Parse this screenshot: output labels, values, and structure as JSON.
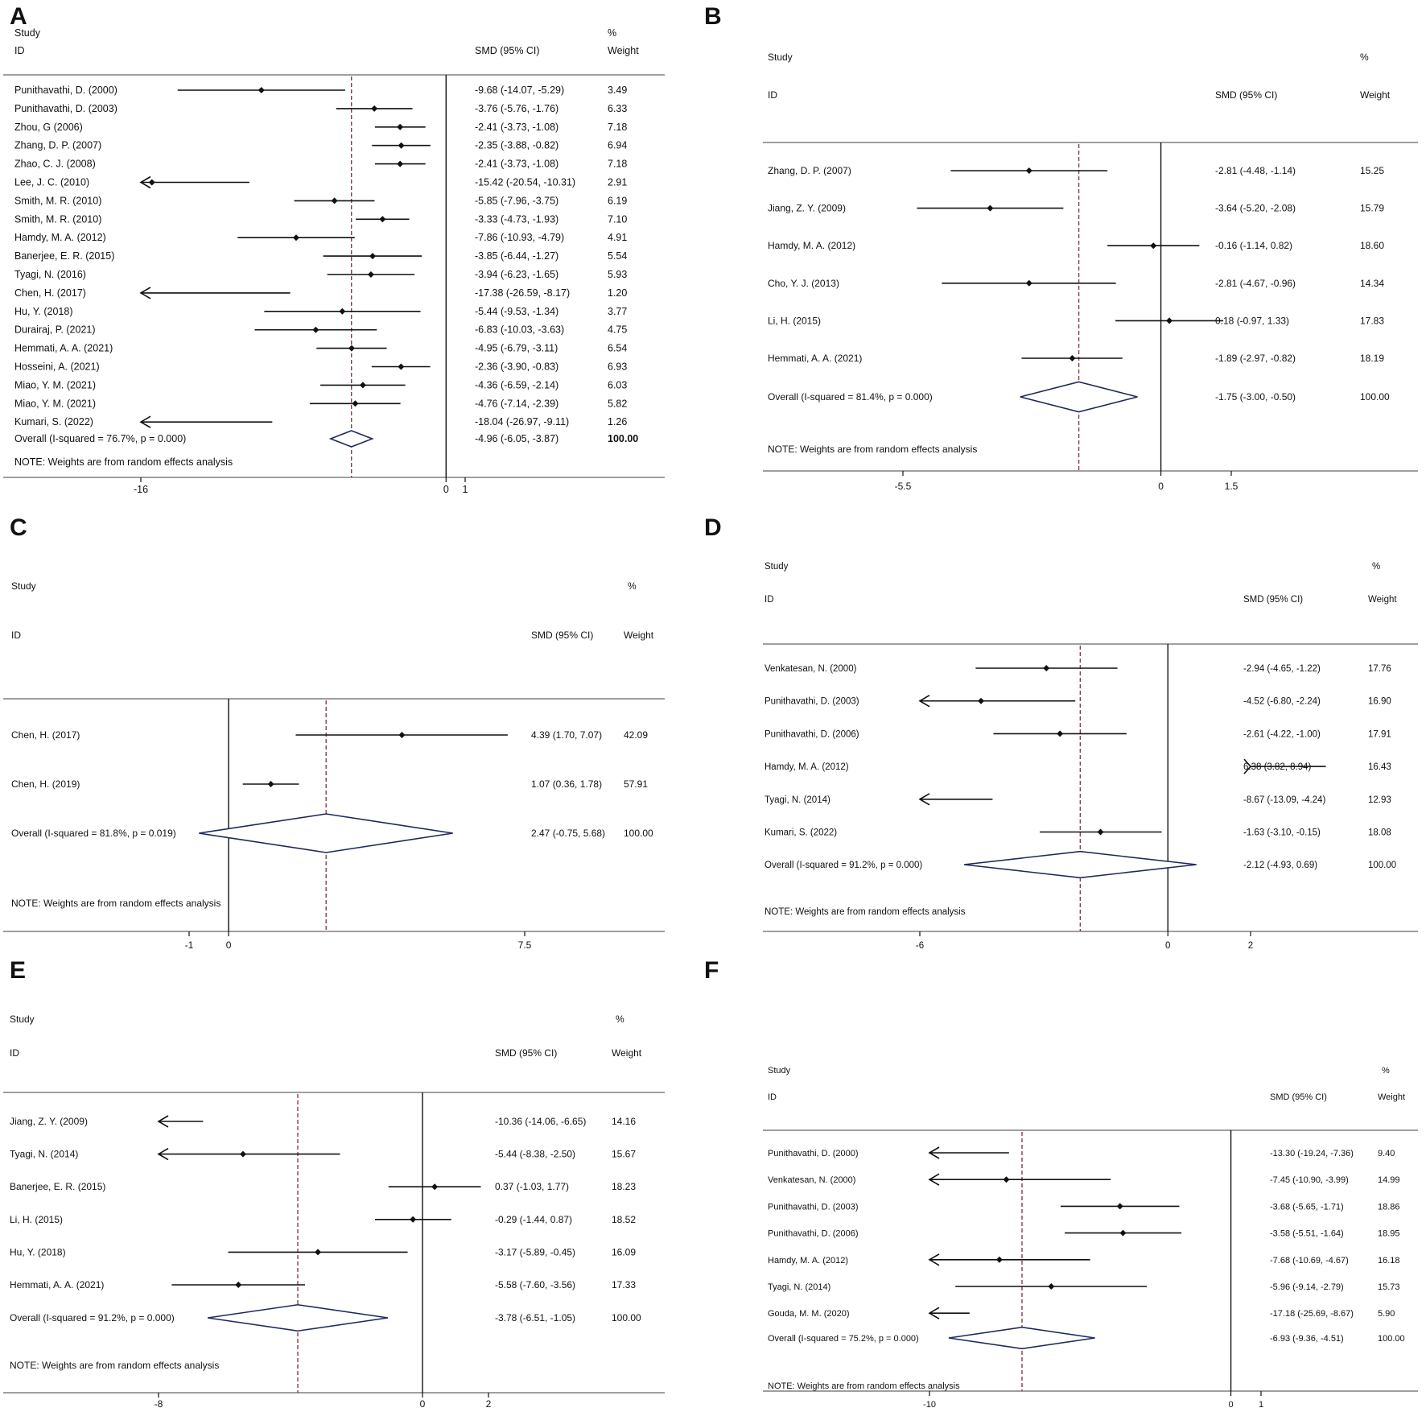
{
  "chart_data": [
    {
      "type": "forest",
      "panel_label": "A",
      "header": {
        "study": "Study",
        "id": "ID",
        "effect": "SMD (95% CI)",
        "pct": "%",
        "weight": "Weight"
      },
      "studies": [
        {
          "label": "Punithavathi, D. (2000)",
          "est": -9.68,
          "lo": -14.07,
          "hi": -5.29,
          "ci_text": "-9.68 (-14.07, -5.29)",
          "weight": "3.49"
        },
        {
          "label": "Punithavathi, D. (2003)",
          "est": -3.76,
          "lo": -5.76,
          "hi": -1.76,
          "ci_text": "-3.76 (-5.76, -1.76)",
          "weight": "6.33"
        },
        {
          "label": "Zhou, G (2006)",
          "est": -2.41,
          "lo": -3.73,
          "hi": -1.08,
          "ci_text": "-2.41 (-3.73, -1.08)",
          "weight": "7.18"
        },
        {
          "label": "Zhang, D. P. (2007)",
          "est": -2.35,
          "lo": -3.88,
          "hi": -0.82,
          "ci_text": "-2.35 (-3.88, -0.82)",
          "weight": "6.94"
        },
        {
          "label": "Zhao, C. J. (2008)",
          "est": -2.41,
          "lo": -3.73,
          "hi": -1.08,
          "ci_text": "-2.41 (-3.73, -1.08)",
          "weight": "7.18"
        },
        {
          "label": "Lee, J. C. (2010)",
          "est": -15.42,
          "lo": -20.54,
          "hi": -10.31,
          "ci_text": "-15.42 (-20.54, -10.31)",
          "weight": "2.91"
        },
        {
          "label": "Smith, M. R. (2010)",
          "est": -5.85,
          "lo": -7.96,
          "hi": -3.75,
          "ci_text": "-5.85 (-7.96, -3.75)",
          "weight": "6.19"
        },
        {
          "label": "Smith, M. R. (2010)",
          "est": -3.33,
          "lo": -4.73,
          "hi": -1.93,
          "ci_text": "-3.33 (-4.73, -1.93)",
          "weight": "7.10"
        },
        {
          "label": "Hamdy, M. A. (2012)",
          "est": -7.86,
          "lo": -10.93,
          "hi": -4.79,
          "ci_text": "-7.86 (-10.93, -4.79)",
          "weight": "4.91"
        },
        {
          "label": "Banerjee, E. R. (2015)",
          "est": -3.85,
          "lo": -6.44,
          "hi": -1.27,
          "ci_text": "-3.85 (-6.44, -1.27)",
          "weight": "5.54"
        },
        {
          "label": "Tyagi, N. (2016)",
          "est": -3.94,
          "lo": -6.23,
          "hi": -1.65,
          "ci_text": "-3.94 (-6.23, -1.65)",
          "weight": "5.93"
        },
        {
          "label": "Chen, H. (2017)",
          "est": -17.38,
          "lo": -26.59,
          "hi": -8.17,
          "ci_text": "-17.38 (-26.59, -8.17)",
          "weight": "1.20"
        },
        {
          "label": "Hu, Y. (2018)",
          "est": -5.44,
          "lo": -9.53,
          "hi": -1.34,
          "ci_text": "-5.44 (-9.53, -1.34)",
          "weight": "3.77"
        },
        {
          "label": "Durairaj, P. (2021)",
          "est": -6.83,
          "lo": -10.03,
          "hi": -3.63,
          "ci_text": "-6.83 (-10.03, -3.63)",
          "weight": "4.75"
        },
        {
          "label": "Hemmati, A. A. (2021)",
          "est": -4.95,
          "lo": -6.79,
          "hi": -3.11,
          "ci_text": "-4.95 (-6.79, -3.11)",
          "weight": "6.54"
        },
        {
          "label": "Hosseini, A. (2021)",
          "est": -2.36,
          "lo": -3.9,
          "hi": -0.83,
          "ci_text": "-2.36 (-3.90, -0.83)",
          "weight": "6.93"
        },
        {
          "label": "Miao, Y. M. (2021)",
          "est": -4.36,
          "lo": -6.59,
          "hi": -2.14,
          "ci_text": "-4.36 (-6.59, -2.14)",
          "weight": "6.03"
        },
        {
          "label": "Miao, Y. M. (2021)",
          "est": -4.76,
          "lo": -7.14,
          "hi": -2.39,
          "ci_text": "-4.76 (-7.14, -2.39)",
          "weight": "5.82"
        },
        {
          "label": "Kumari, S. (2022)",
          "est": -18.04,
          "lo": -26.97,
          "hi": -9.11,
          "ci_text": "-18.04 (-26.97, -9.11)",
          "weight": "1.26"
        }
      ],
      "overall": {
        "label": "Overall  (I-squared = 76.7%, p = 0.000)",
        "est": -4.96,
        "lo": -6.05,
        "hi": -3.87,
        "ci_text": "-4.96 (-6.05, -3.87)",
        "weight": "100.00"
      },
      "note": "NOTE: Weights are from random effects analysis",
      "xlim": [
        -16,
        1
      ],
      "ticks": [
        -16,
        0,
        1
      ],
      "tick_labels": [
        "-16",
        "0",
        "1"
      ]
    },
    {
      "type": "forest",
      "panel_label": "B",
      "header": {
        "study": "Study",
        "id": "ID",
        "effect": "SMD (95% CI)",
        "pct": "%",
        "weight": "Weight"
      },
      "studies": [
        {
          "label": "Zhang, D. P. (2007)",
          "est": -2.81,
          "lo": -4.48,
          "hi": -1.14,
          "ci_text": "-2.81 (-4.48, -1.14)",
          "weight": "15.25"
        },
        {
          "label": "Jiang, Z. Y. (2009)",
          "est": -3.64,
          "lo": -5.2,
          "hi": -2.08,
          "ci_text": "-3.64 (-5.20, -2.08)",
          "weight": "15.79"
        },
        {
          "label": "Hamdy, M. A. (2012)",
          "est": -0.16,
          "lo": -1.14,
          "hi": 0.82,
          "ci_text": "-0.16 (-1.14, 0.82)",
          "weight": "18.60"
        },
        {
          "label": "Cho, Y. J. (2013)",
          "est": -2.81,
          "lo": -4.67,
          "hi": -0.96,
          "ci_text": "-2.81 (-4.67, -0.96)",
          "weight": "14.34"
        },
        {
          "label": "Li, H. (2015)",
          "est": 0.18,
          "lo": -0.97,
          "hi": 1.33,
          "ci_text": "0.18 (-0.97, 1.33)",
          "weight": "17.83"
        },
        {
          "label": "Hemmati, A. A. (2021)",
          "est": -1.89,
          "lo": -2.97,
          "hi": -0.82,
          "ci_text": "-1.89 (-2.97, -0.82)",
          "weight": "18.19"
        }
      ],
      "overall": {
        "label": "Overall  (I-squared = 81.4%, p = 0.000)",
        "est": -1.75,
        "lo": -3.0,
        "hi": -0.5,
        "ci_text": "-1.75 (-3.00, -0.50)",
        "weight": "100.00"
      },
      "note": "NOTE: Weights are from random effects analysis",
      "xlim": [
        -5.5,
        1.5
      ],
      "ticks": [
        -5.5,
        0,
        1.5
      ],
      "tick_labels": [
        "-5.5",
        "0",
        "1.5"
      ]
    },
    {
      "type": "forest",
      "panel_label": "C",
      "header": {
        "study": "Study",
        "id": "ID",
        "effect": "SMD (95% CI)",
        "pct": "%",
        "weight": "Weight"
      },
      "studies": [
        {
          "label": "Chen, H. (2017)",
          "est": 4.39,
          "lo": 1.7,
          "hi": 7.07,
          "ci_text": "4.39 (1.70, 7.07)",
          "weight": "42.09"
        },
        {
          "label": "Chen, H. (2019)",
          "est": 1.07,
          "lo": 0.36,
          "hi": 1.78,
          "ci_text": "1.07 (0.36, 1.78)",
          "weight": "57.91"
        }
      ],
      "overall": {
        "label": "Overall  (I-squared = 81.8%, p = 0.019)",
        "est": 2.47,
        "lo": -0.75,
        "hi": 5.68,
        "ci_text": "2.47 (-0.75, 5.68)",
        "weight": "100.00"
      },
      "note": "NOTE: Weights are from random effects analysis",
      "xlim": [
        -1,
        7.5
      ],
      "ticks": [
        -1,
        0,
        7.5
      ],
      "tick_labels": [
        "-1",
        "0",
        "7.5"
      ]
    },
    {
      "type": "forest",
      "panel_label": "D",
      "header": {
        "study": "Study",
        "id": "ID",
        "effect": "SMD (95% CI)",
        "pct": "%",
        "weight": "Weight"
      },
      "studies": [
        {
          "label": "Venkatesan, N. (2000)",
          "est": -2.94,
          "lo": -4.65,
          "hi": -1.22,
          "ci_text": "-2.94 (-4.65, -1.22)",
          "weight": "17.76"
        },
        {
          "label": "Punithavathi, D. (2003)",
          "est": -4.52,
          "lo": -6.8,
          "hi": -2.24,
          "ci_text": "-4.52 (-6.80, -2.24)",
          "weight": "16.90"
        },
        {
          "label": "Punithavathi, D. (2006)",
          "est": -2.61,
          "lo": -4.22,
          "hi": -1.0,
          "ci_text": "-2.61 (-4.22, -1.00)",
          "weight": "17.91"
        },
        {
          "label": "Hamdy, M. A. (2012)",
          "est": 6.38,
          "lo": 3.82,
          "hi": 8.94,
          "ci_text": "6.38 (3.82, 8.94)",
          "weight": "16.43"
        },
        {
          "label": "Tyagi, N. (2014)",
          "est": -8.67,
          "lo": -13.09,
          "hi": -4.24,
          "ci_text": "-8.67 (-13.09, -4.24)",
          "weight": "12.93"
        },
        {
          "label": "Kumari, S. (2022)",
          "est": -1.63,
          "lo": -3.1,
          "hi": -0.15,
          "ci_text": "-1.63 (-3.10, -0.15)",
          "weight": "18.08"
        }
      ],
      "overall": {
        "label": "Overall  (I-squared = 91.2%, p = 0.000)",
        "est": -2.12,
        "lo": -4.93,
        "hi": 0.69,
        "ci_text": "-2.12 (-4.93, 0.69)",
        "weight": "100.00"
      },
      "note": "NOTE: Weights are from random effects analysis",
      "xlim": [
        -6,
        2
      ],
      "ticks": [
        -6,
        0,
        2
      ],
      "tick_labels": [
        "-6",
        "0",
        "2"
      ]
    },
    {
      "type": "forest",
      "panel_label": "E",
      "header": {
        "study": "Study",
        "id": "ID",
        "effect": "SMD (95% CI)",
        "pct": "%",
        "weight": "Weight"
      },
      "studies": [
        {
          "label": "Jiang, Z. Y. (2009)",
          "est": -10.36,
          "lo": -14.06,
          "hi": -6.65,
          "ci_text": "-10.36 (-14.06, -6.65)",
          "weight": "14.16"
        },
        {
          "label": "Tyagi, N. (2014)",
          "est": -5.44,
          "lo": -8.38,
          "hi": -2.5,
          "ci_text": "-5.44 (-8.38, -2.50)",
          "weight": "15.67"
        },
        {
          "label": "Banerjee, E. R. (2015)",
          "est": 0.37,
          "lo": -1.03,
          "hi": 1.77,
          "ci_text": "0.37 (-1.03, 1.77)",
          "weight": "18.23"
        },
        {
          "label": "Li, H. (2015)",
          "est": -0.29,
          "lo": -1.44,
          "hi": 0.87,
          "ci_text": "-0.29 (-1.44, 0.87)",
          "weight": "18.52"
        },
        {
          "label": "Hu, Y. (2018)",
          "est": -3.17,
          "lo": -5.89,
          "hi": -0.45,
          "ci_text": "-3.17 (-5.89, -0.45)",
          "weight": "16.09"
        },
        {
          "label": "Hemmati, A. A. (2021)",
          "est": -5.58,
          "lo": -7.6,
          "hi": -3.56,
          "ci_text": "-5.58 (-7.60, -3.56)",
          "weight": "17.33"
        }
      ],
      "overall": {
        "label": "Overall  (I-squared = 91.2%, p = 0.000)",
        "est": -3.78,
        "lo": -6.51,
        "hi": -1.05,
        "ci_text": "-3.78 (-6.51, -1.05)",
        "weight": "100.00"
      },
      "note": "NOTE: Weights are from random effects analysis",
      "xlim": [
        -8,
        2
      ],
      "ticks": [
        -8,
        0,
        2
      ],
      "tick_labels": [
        "-8",
        "0",
        "2"
      ]
    },
    {
      "type": "forest",
      "panel_label": "F",
      "header": {
        "study": "Study",
        "id": "ID",
        "effect": "SMD (95% CI)",
        "pct": "%",
        "weight": "Weight"
      },
      "studies": [
        {
          "label": "Punithavathi, D. (2000)",
          "est": -13.3,
          "lo": -19.24,
          "hi": -7.36,
          "ci_text": "-13.30 (-19.24, -7.36)",
          "weight": "9.40"
        },
        {
          "label": "Venkatesan, N. (2000)",
          "est": -7.45,
          "lo": -10.9,
          "hi": -3.99,
          "ci_text": "-7.45 (-10.90, -3.99)",
          "weight": "14.99"
        },
        {
          "label": "Punithavathi, D. (2003)",
          "est": -3.68,
          "lo": -5.65,
          "hi": -1.71,
          "ci_text": "-3.68 (-5.65, -1.71)",
          "weight": "18.86"
        },
        {
          "label": "Punithavathi, D. (2006)",
          "est": -3.58,
          "lo": -5.51,
          "hi": -1.64,
          "ci_text": "-3.58 (-5.51, -1.64)",
          "weight": "18.95"
        },
        {
          "label": "Hamdy, M. A. (2012)",
          "est": -7.68,
          "lo": -10.69,
          "hi": -4.67,
          "ci_text": "-7.68 (-10.69, -4.67)",
          "weight": "16.18"
        },
        {
          "label": "Tyagi, N. (2014)",
          "est": -5.96,
          "lo": -9.14,
          "hi": -2.79,
          "ci_text": "-5.96 (-9.14, -2.79)",
          "weight": "15.73"
        },
        {
          "label": "Gouda, M. M. (2020)",
          "est": -17.18,
          "lo": -25.69,
          "hi": -8.67,
          "ci_text": "-17.18 (-25.69, -8.67)",
          "weight": "5.90"
        }
      ],
      "overall": {
        "label": "Overall  (I-squared = 75.2%, p = 0.000)",
        "est": -6.93,
        "lo": -9.36,
        "hi": -4.51,
        "ci_text": "-6.93 (-9.36, -4.51)",
        "weight": "100.00"
      },
      "note": "NOTE: Weights are from random effects analysis",
      "xlim": [
        -10,
        1
      ],
      "ticks": [
        -10,
        0,
        1
      ],
      "tick_labels": [
        "-10",
        "0",
        "1"
      ]
    }
  ],
  "colors": {
    "ink": "#111111",
    "diamond": "#1f2a5c",
    "overall_line": "#8c3b4b"
  }
}
